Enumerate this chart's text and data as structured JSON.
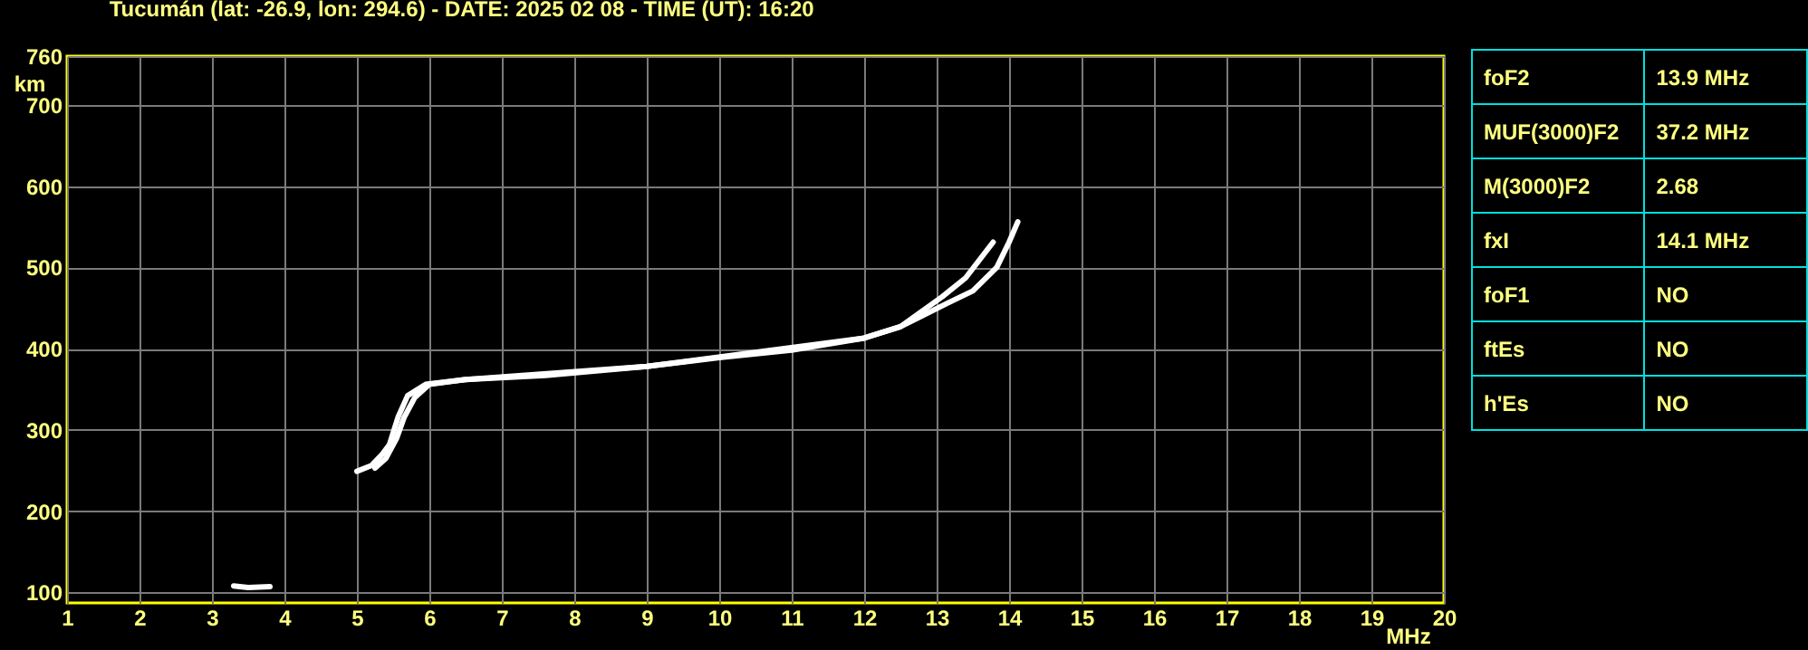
{
  "chart_data": [
    {
      "type": "line",
      "title": "Tucumán (lat: -26.9, lon: 294.6) - DATE: 2025 02 08 - TIME (UT): 16:20",
      "xlabel": "MHz",
      "ylabel": "km",
      "xlim": [
        1,
        20
      ],
      "ylim": [
        87,
        760
      ],
      "xticks": [
        1,
        2,
        3,
        4,
        5,
        6,
        7,
        8,
        9,
        10,
        11,
        12,
        13,
        14,
        15,
        16,
        17,
        18,
        19,
        20
      ],
      "yticks": [
        100,
        200,
        300,
        400,
        500,
        600,
        700,
        760
      ],
      "grid": true,
      "series": [
        {
          "color": "#ffffff",
          "x": [
            5.0,
            5.2,
            5.35,
            5.45,
            5.57,
            5.7,
            5.95,
            6.5,
            7.6,
            9.0,
            10.0,
            11.0,
            12.0,
            12.5,
            13.08,
            13.4,
            13.65,
            13.78
          ],
          "values": [
            249,
            256,
            270,
            282,
            316,
            342,
            356,
            362,
            367,
            378,
            389,
            398,
            413,
            427,
            464,
            487,
            516,
            531
          ]
        },
        {
          "color": "#ffffff",
          "x": [
            5.25,
            5.4,
            5.55,
            5.65,
            5.8,
            6.0,
            6.5,
            9.0,
            12.0,
            12.5,
            13.15,
            13.5,
            13.83,
            14.0,
            14.12
          ],
          "values": [
            253,
            265,
            290,
            315,
            340,
            356,
            362,
            378,
            413,
            427,
            456,
            471,
            500,
            531,
            556
          ]
        },
        {
          "color": "#ffffff",
          "x": [
            3.3,
            3.5,
            3.8
          ],
          "values": [
            108,
            106,
            107
          ]
        }
      ]
    },
    {
      "type": "other",
      "categories": [
        "foF2",
        "MUF(3000)F2",
        "M(3000)F2",
        "fxI",
        "foF1",
        "ftEs",
        "h'Es"
      ],
      "value_labels": [
        "13.9 MHz",
        "37.2 MHz",
        "2.68",
        "14.1 MHz",
        "NO",
        "NO",
        "NO"
      ]
    }
  ]
}
